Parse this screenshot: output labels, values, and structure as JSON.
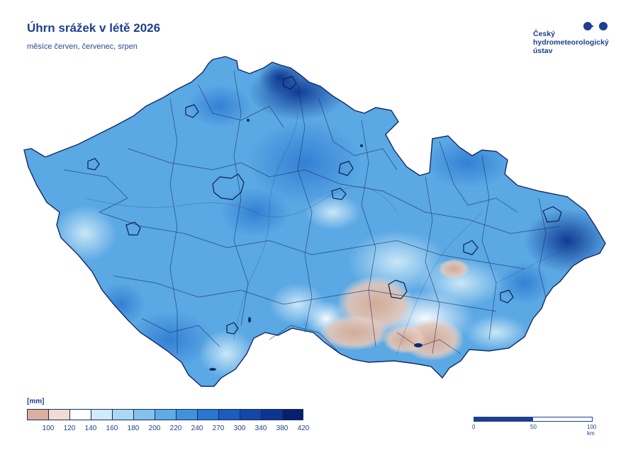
{
  "header": {
    "title": "Úhrn srážek v létě 2026",
    "subtitle": "měsíce červen, červenec, srpen"
  },
  "logo": {
    "lines": [
      "Český",
      "hydrometeorologický",
      "ústav"
    ],
    "color": "#1d3f8f"
  },
  "legend": {
    "unit": "[mm]",
    "colors": [
      "#d9b0a0",
      "#f2dcd2",
      "#ffffff",
      "#cfeaf8",
      "#a9d8f2",
      "#82c2ec",
      "#5fabe4",
      "#3f93dc",
      "#2a76d0",
      "#1b5cbf",
      "#1347a8",
      "#0c3590",
      "#061f6e"
    ],
    "ticks": [
      "100",
      "120",
      "140",
      "160",
      "180",
      "200",
      "220",
      "240",
      "270",
      "300",
      "340",
      "380",
      "420"
    ]
  },
  "scale": {
    "labels": [
      "0",
      "50",
      "100 km"
    ]
  },
  "map": {
    "base_color": "#5aa8e4",
    "dry_color": "#dcb7a6",
    "wet_color": "#1b4fb4"
  }
}
